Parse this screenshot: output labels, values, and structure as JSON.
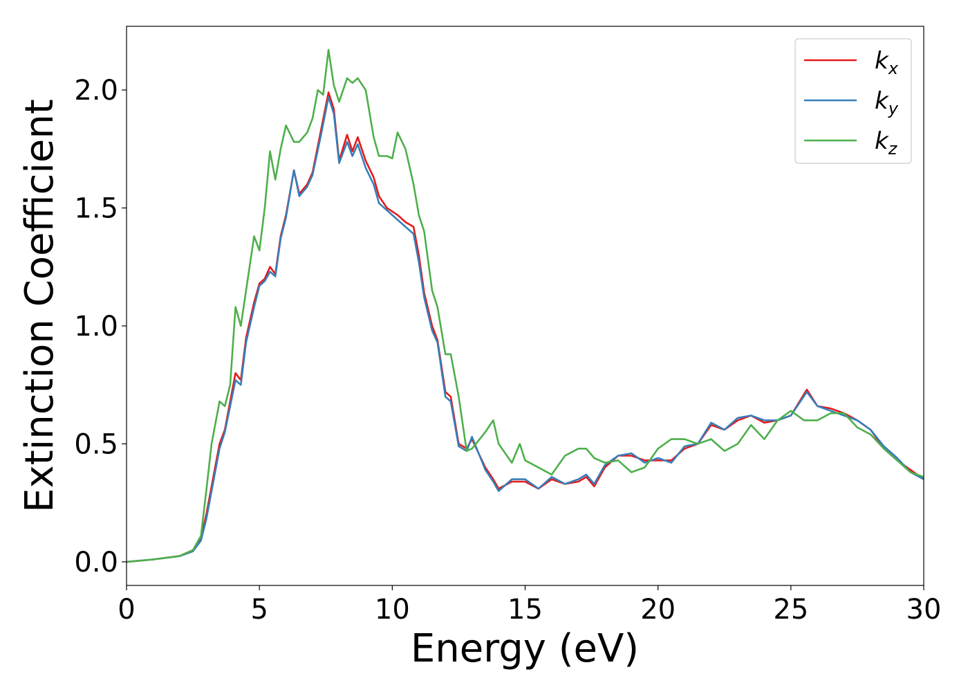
{
  "chart_data": {
    "type": "line",
    "xlabel": "Energy (eV)",
    "ylabel": "Extinction Coefficient",
    "xlim": [
      0,
      30
    ],
    "ylim": [
      -0.1,
      2.27
    ],
    "xticks": [
      0,
      5,
      10,
      15,
      20,
      25,
      30
    ],
    "xtick_labels": [
      "0",
      "5",
      "10",
      "15",
      "20",
      "25",
      "30"
    ],
    "yticks": [
      0.0,
      0.5,
      1.0,
      1.5,
      2.0
    ],
    "ytick_labels": [
      "0.0",
      "0.5",
      "1.0",
      "1.5",
      "2.0"
    ],
    "grid": false,
    "legend_position": "top-right",
    "series": [
      {
        "name": "k_x",
        "label_base": "k",
        "label_sub": "x",
        "color": "#e41a1c",
        "points": [
          [
            0,
            0.0
          ],
          [
            1,
            0.01
          ],
          [
            2,
            0.025
          ],
          [
            2.5,
            0.05
          ],
          [
            2.8,
            0.1
          ],
          [
            3.0,
            0.2
          ],
          [
            3.2,
            0.32
          ],
          [
            3.5,
            0.5
          ],
          [
            3.7,
            0.56
          ],
          [
            3.9,
            0.68
          ],
          [
            4.1,
            0.8
          ],
          [
            4.3,
            0.77
          ],
          [
            4.5,
            0.95
          ],
          [
            4.8,
            1.1
          ],
          [
            5.0,
            1.18
          ],
          [
            5.2,
            1.2
          ],
          [
            5.4,
            1.25
          ],
          [
            5.6,
            1.22
          ],
          [
            5.8,
            1.38
          ],
          [
            6.0,
            1.47
          ],
          [
            6.3,
            1.66
          ],
          [
            6.5,
            1.56
          ],
          [
            6.8,
            1.6
          ],
          [
            7.0,
            1.65
          ],
          [
            7.3,
            1.82
          ],
          [
            7.6,
            1.99
          ],
          [
            7.8,
            1.92
          ],
          [
            8.0,
            1.7
          ],
          [
            8.3,
            1.81
          ],
          [
            8.5,
            1.74
          ],
          [
            8.7,
            1.8
          ],
          [
            9.0,
            1.7
          ],
          [
            9.3,
            1.63
          ],
          [
            9.5,
            1.55
          ],
          [
            9.8,
            1.5
          ],
          [
            10.2,
            1.47
          ],
          [
            10.5,
            1.44
          ],
          [
            10.8,
            1.42
          ],
          [
            11.0,
            1.3
          ],
          [
            11.2,
            1.14
          ],
          [
            11.5,
            1.0
          ],
          [
            11.7,
            0.94
          ],
          [
            12.0,
            0.72
          ],
          [
            12.2,
            0.7
          ],
          [
            12.5,
            0.5
          ],
          [
            12.8,
            0.48
          ],
          [
            13.0,
            0.52
          ],
          [
            13.5,
            0.4
          ],
          [
            13.8,
            0.35
          ],
          [
            14.0,
            0.31
          ],
          [
            14.5,
            0.34
          ],
          [
            15.0,
            0.34
          ],
          [
            15.5,
            0.31
          ],
          [
            16.0,
            0.35
          ],
          [
            16.5,
            0.33
          ],
          [
            17.0,
            0.34
          ],
          [
            17.3,
            0.36
          ],
          [
            17.6,
            0.32
          ],
          [
            18.0,
            0.4
          ],
          [
            18.5,
            0.45
          ],
          [
            19.0,
            0.45
          ],
          [
            19.5,
            0.43
          ],
          [
            20.0,
            0.43
          ],
          [
            20.5,
            0.43
          ],
          [
            21.0,
            0.48
          ],
          [
            21.5,
            0.5
          ],
          [
            22.0,
            0.58
          ],
          [
            22.5,
            0.56
          ],
          [
            23.0,
            0.6
          ],
          [
            23.5,
            0.62
          ],
          [
            24.0,
            0.59
          ],
          [
            24.5,
            0.6
          ],
          [
            25.0,
            0.62
          ],
          [
            25.6,
            0.73
          ],
          [
            26.0,
            0.66
          ],
          [
            26.5,
            0.65
          ],
          [
            27.0,
            0.63
          ],
          [
            27.5,
            0.6
          ],
          [
            28.0,
            0.56
          ],
          [
            28.5,
            0.48
          ],
          [
            29.0,
            0.43
          ],
          [
            29.5,
            0.39
          ],
          [
            30.0,
            0.35
          ]
        ]
      },
      {
        "name": "k_y",
        "label_base": "k",
        "label_sub": "y",
        "color": "#377eb8",
        "points": [
          [
            0,
            0.0
          ],
          [
            1,
            0.01
          ],
          [
            2,
            0.024
          ],
          [
            2.5,
            0.045
          ],
          [
            2.8,
            0.09
          ],
          [
            3.0,
            0.18
          ],
          [
            3.2,
            0.3
          ],
          [
            3.5,
            0.48
          ],
          [
            3.7,
            0.55
          ],
          [
            3.9,
            0.66
          ],
          [
            4.1,
            0.77
          ],
          [
            4.3,
            0.75
          ],
          [
            4.5,
            0.93
          ],
          [
            4.8,
            1.08
          ],
          [
            5.0,
            1.17
          ],
          [
            5.2,
            1.19
          ],
          [
            5.4,
            1.23
          ],
          [
            5.6,
            1.21
          ],
          [
            5.8,
            1.37
          ],
          [
            6.0,
            1.46
          ],
          [
            6.3,
            1.66
          ],
          [
            6.5,
            1.55
          ],
          [
            6.8,
            1.59
          ],
          [
            7.0,
            1.64
          ],
          [
            7.3,
            1.8
          ],
          [
            7.6,
            1.97
          ],
          [
            7.8,
            1.9
          ],
          [
            8.0,
            1.69
          ],
          [
            8.3,
            1.78
          ],
          [
            8.5,
            1.72
          ],
          [
            8.7,
            1.77
          ],
          [
            9.0,
            1.67
          ],
          [
            9.3,
            1.6
          ],
          [
            9.5,
            1.52
          ],
          [
            9.8,
            1.49
          ],
          [
            10.2,
            1.45
          ],
          [
            10.5,
            1.42
          ],
          [
            10.8,
            1.39
          ],
          [
            11.0,
            1.27
          ],
          [
            11.2,
            1.12
          ],
          [
            11.5,
            0.98
          ],
          [
            11.7,
            0.93
          ],
          [
            12.0,
            0.7
          ],
          [
            12.2,
            0.68
          ],
          [
            12.5,
            0.49
          ],
          [
            12.8,
            0.47
          ],
          [
            13.0,
            0.53
          ],
          [
            13.5,
            0.39
          ],
          [
            13.8,
            0.34
          ],
          [
            14.0,
            0.3
          ],
          [
            14.5,
            0.35
          ],
          [
            15.0,
            0.35
          ],
          [
            15.5,
            0.31
          ],
          [
            16.0,
            0.36
          ],
          [
            16.5,
            0.33
          ],
          [
            17.0,
            0.35
          ],
          [
            17.3,
            0.37
          ],
          [
            17.6,
            0.33
          ],
          [
            18.0,
            0.41
          ],
          [
            18.5,
            0.45
          ],
          [
            19.0,
            0.46
          ],
          [
            19.5,
            0.42
          ],
          [
            20.0,
            0.44
          ],
          [
            20.5,
            0.42
          ],
          [
            21.0,
            0.49
          ],
          [
            21.5,
            0.5
          ],
          [
            22.0,
            0.59
          ],
          [
            22.5,
            0.56
          ],
          [
            23.0,
            0.61
          ],
          [
            23.5,
            0.62
          ],
          [
            24.0,
            0.6
          ],
          [
            24.5,
            0.6
          ],
          [
            25.0,
            0.62
          ],
          [
            25.6,
            0.72
          ],
          [
            26.0,
            0.66
          ],
          [
            26.5,
            0.64
          ],
          [
            27.0,
            0.62
          ],
          [
            27.5,
            0.6
          ],
          [
            28.0,
            0.56
          ],
          [
            28.5,
            0.49
          ],
          [
            29.0,
            0.44
          ],
          [
            29.5,
            0.38
          ],
          [
            30.0,
            0.35
          ]
        ]
      },
      {
        "name": "k_z",
        "label_base": "k",
        "label_sub": "z",
        "color": "#4daf4a",
        "points": [
          [
            0,
            0.0
          ],
          [
            1,
            0.01
          ],
          [
            2,
            0.025
          ],
          [
            2.5,
            0.05
          ],
          [
            2.8,
            0.11
          ],
          [
            3.0,
            0.3
          ],
          [
            3.2,
            0.5
          ],
          [
            3.5,
            0.68
          ],
          [
            3.7,
            0.66
          ],
          [
            3.9,
            0.75
          ],
          [
            4.1,
            1.08
          ],
          [
            4.3,
            1.0
          ],
          [
            4.5,
            1.15
          ],
          [
            4.8,
            1.38
          ],
          [
            5.0,
            1.32
          ],
          [
            5.2,
            1.5
          ],
          [
            5.4,
            1.74
          ],
          [
            5.6,
            1.62
          ],
          [
            5.8,
            1.75
          ],
          [
            6.0,
            1.85
          ],
          [
            6.3,
            1.78
          ],
          [
            6.5,
            1.78
          ],
          [
            6.8,
            1.82
          ],
          [
            7.0,
            1.88
          ],
          [
            7.2,
            2.0
          ],
          [
            7.4,
            1.98
          ],
          [
            7.6,
            2.17
          ],
          [
            7.8,
            2.02
          ],
          [
            8.0,
            1.95
          ],
          [
            8.3,
            2.05
          ],
          [
            8.5,
            2.03
          ],
          [
            8.7,
            2.05
          ],
          [
            9.0,
            2.0
          ],
          [
            9.3,
            1.8
          ],
          [
            9.5,
            1.72
          ],
          [
            9.8,
            1.72
          ],
          [
            10.0,
            1.71
          ],
          [
            10.2,
            1.82
          ],
          [
            10.5,
            1.75
          ],
          [
            10.8,
            1.6
          ],
          [
            11.0,
            1.47
          ],
          [
            11.2,
            1.4
          ],
          [
            11.5,
            1.15
          ],
          [
            11.7,
            1.08
          ],
          [
            12.0,
            0.88
          ],
          [
            12.2,
            0.88
          ],
          [
            12.5,
            0.7
          ],
          [
            12.8,
            0.47
          ],
          [
            13.0,
            0.48
          ],
          [
            13.5,
            0.55
          ],
          [
            13.8,
            0.6
          ],
          [
            14.0,
            0.5
          ],
          [
            14.5,
            0.42
          ],
          [
            14.8,
            0.5
          ],
          [
            15.0,
            0.43
          ],
          [
            15.5,
            0.4
          ],
          [
            16.0,
            0.37
          ],
          [
            16.5,
            0.45
          ],
          [
            17.0,
            0.48
          ],
          [
            17.3,
            0.48
          ],
          [
            17.6,
            0.44
          ],
          [
            18.0,
            0.42
          ],
          [
            18.5,
            0.43
          ],
          [
            19.0,
            0.38
          ],
          [
            19.5,
            0.4
          ],
          [
            20.0,
            0.48
          ],
          [
            20.5,
            0.52
          ],
          [
            21.0,
            0.52
          ],
          [
            21.5,
            0.5
          ],
          [
            22.0,
            0.52
          ],
          [
            22.5,
            0.47
          ],
          [
            23.0,
            0.5
          ],
          [
            23.5,
            0.58
          ],
          [
            24.0,
            0.52
          ],
          [
            24.5,
            0.6
          ],
          [
            25.0,
            0.64
          ],
          [
            25.5,
            0.6
          ],
          [
            26.0,
            0.6
          ],
          [
            26.5,
            0.63
          ],
          [
            27.0,
            0.63
          ],
          [
            27.5,
            0.57
          ],
          [
            28.0,
            0.54
          ],
          [
            28.5,
            0.48
          ],
          [
            29.0,
            0.43
          ],
          [
            29.5,
            0.38
          ],
          [
            30.0,
            0.36
          ]
        ]
      }
    ]
  }
}
